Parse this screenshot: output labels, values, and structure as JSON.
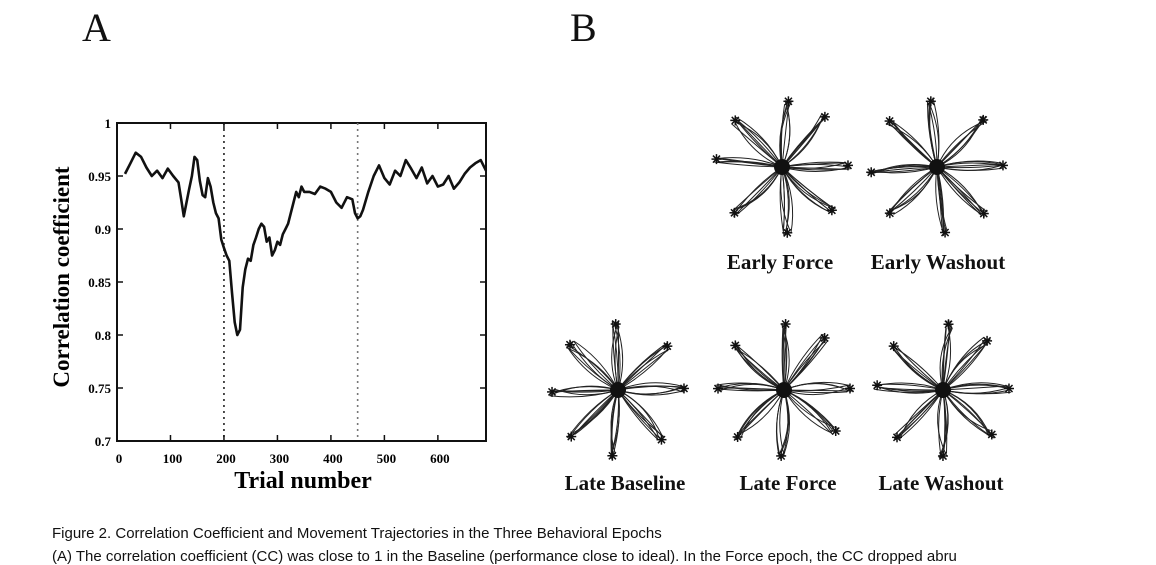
{
  "figure": {
    "panel_a_letter": "A",
    "panel_b_letter": "B",
    "caption_title": "Figure 2.  Correlation Coefficient and Movement Trajectories in the Three Behavioral Epochs",
    "caption_body": "(A) The correlation coefficient (CC) was close to 1 in the Baseline (performance close to ideal). In the Force epoch, the CC dropped abru"
  },
  "chart_data": {
    "type": "line",
    "xlabel": "Trial number",
    "ylabel": "Correlation  coefficient",
    "xlim": [
      0,
      690
    ],
    "ylim": [
      0.7,
      1.0
    ],
    "xticks": [
      0,
      100,
      200,
      300,
      400,
      500,
      600
    ],
    "yticks": [
      0.7,
      0.75,
      0.8,
      0.85,
      0.9,
      0.95,
      1
    ],
    "ytick_labels": [
      "0.7",
      "0.75",
      "0.8",
      "0.85",
      "0.9",
      "0.95",
      "1"
    ],
    "epoch_markers": [
      200,
      450
    ],
    "series": [
      {
        "x": [
          15,
          25,
          35,
          45,
          55,
          65,
          75,
          85,
          95,
          105,
          115,
          120,
          125,
          130,
          135,
          140,
          145,
          150,
          155,
          160,
          165,
          170,
          175,
          180,
          185,
          190,
          195,
          200,
          205,
          210,
          215,
          220,
          225,
          230,
          235,
          240,
          245,
          250,
          255,
          260,
          265,
          270,
          275,
          280,
          285,
          290,
          295,
          300,
          305,
          310,
          315,
          320,
          325,
          330,
          335,
          340,
          345,
          350,
          360,
          370,
          380,
          390,
          400,
          410,
          420,
          430,
          440,
          445,
          450,
          455,
          460,
          470,
          480,
          490,
          500,
          510,
          520,
          530,
          540,
          550,
          560,
          570,
          580,
          590,
          600,
          610,
          620,
          630,
          640,
          650,
          660,
          670,
          680,
          690
        ],
        "y": [
          0.952,
          0.962,
          0.972,
          0.968,
          0.958,
          0.95,
          0.955,
          0.948,
          0.957,
          0.95,
          0.944,
          0.928,
          0.912,
          0.925,
          0.938,
          0.95,
          0.968,
          0.965,
          0.945,
          0.932,
          0.93,
          0.948,
          0.94,
          0.925,
          0.915,
          0.91,
          0.89,
          0.882,
          0.875,
          0.87,
          0.84,
          0.812,
          0.8,
          0.805,
          0.845,
          0.862,
          0.872,
          0.87,
          0.885,
          0.892,
          0.9,
          0.905,
          0.902,
          0.888,
          0.892,
          0.875,
          0.88,
          0.888,
          0.885,
          0.895,
          0.9,
          0.905,
          0.915,
          0.925,
          0.935,
          0.93,
          0.94,
          0.935,
          0.935,
          0.933,
          0.94,
          0.938,
          0.935,
          0.925,
          0.92,
          0.93,
          0.928,
          0.915,
          0.91,
          0.912,
          0.918,
          0.935,
          0.95,
          0.96,
          0.948,
          0.942,
          0.955,
          0.95,
          0.965,
          0.957,
          0.948,
          0.958,
          0.943,
          0.95,
          0.94,
          0.942,
          0.95,
          0.938,
          0.944,
          0.952,
          0.958,
          0.962,
          0.965,
          0.955
        ]
      }
    ]
  },
  "trajectory_panels": [
    {
      "label": "Early Force",
      "ends": [
        1,
        0,
        1,
        0,
        1,
        1,
        1,
        0
      ]
    },
    {
      "label": "Early Washout",
      "ends": [
        0,
        1,
        1,
        1,
        0,
        0,
        1,
        1
      ]
    },
    {
      "label": "Late Baseline",
      "ends": [
        0,
        0,
        0,
        0,
        0,
        0,
        0,
        0
      ]
    },
    {
      "label": "Late Force",
      "ends": [
        0,
        0,
        0,
        0,
        0,
        0,
        0,
        0
      ]
    },
    {
      "label": "Late Washout",
      "ends": [
        0,
        0,
        0,
        0,
        0,
        0,
        0,
        0
      ]
    }
  ]
}
